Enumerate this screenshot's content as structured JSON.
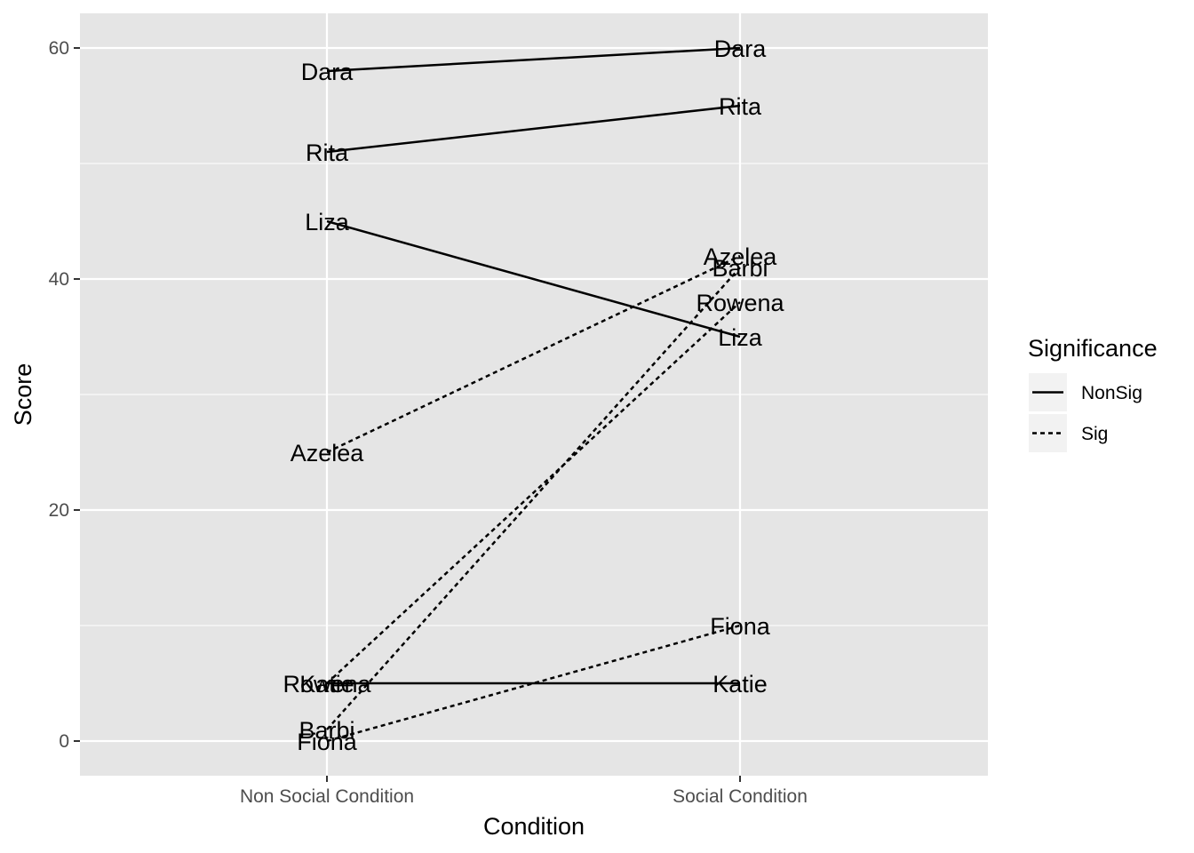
{
  "chart_data": {
    "type": "line",
    "xlabel": "Condition",
    "ylabel": "Score",
    "categories": [
      "Non Social Condition",
      "Social Condition"
    ],
    "ylim": [
      -3,
      63
    ],
    "yticks": [
      0,
      20,
      40,
      60
    ],
    "grid": true,
    "legend": {
      "title": "Significance",
      "position": "right",
      "entries": [
        {
          "label": "NonSig",
          "linetype": "solid"
        },
        {
          "label": "Sig",
          "linetype": "dashed"
        }
      ]
    },
    "series": [
      {
        "name": "Dara",
        "group": "NonSig",
        "values": [
          58,
          60
        ]
      },
      {
        "name": "Rita",
        "group": "NonSig",
        "values": [
          51,
          55
        ]
      },
      {
        "name": "Liza",
        "group": "NonSig",
        "values": [
          45,
          35
        ]
      },
      {
        "name": "Katie",
        "group": "NonSig",
        "values": [
          5,
          5
        ]
      },
      {
        "name": "Azelea",
        "group": "Sig",
        "values": [
          25,
          42
        ]
      },
      {
        "name": "Barbi",
        "group": "Sig",
        "values": [
          1,
          41
        ]
      },
      {
        "name": "Rowena",
        "group": "Sig",
        "values": [
          5,
          38
        ]
      },
      {
        "name": "Fiona",
        "group": "Sig",
        "values": [
          0,
          10
        ]
      }
    ],
    "colors": {
      "panel": "#e5e5e5",
      "grid": "#ffffff",
      "line": "#000000"
    }
  }
}
